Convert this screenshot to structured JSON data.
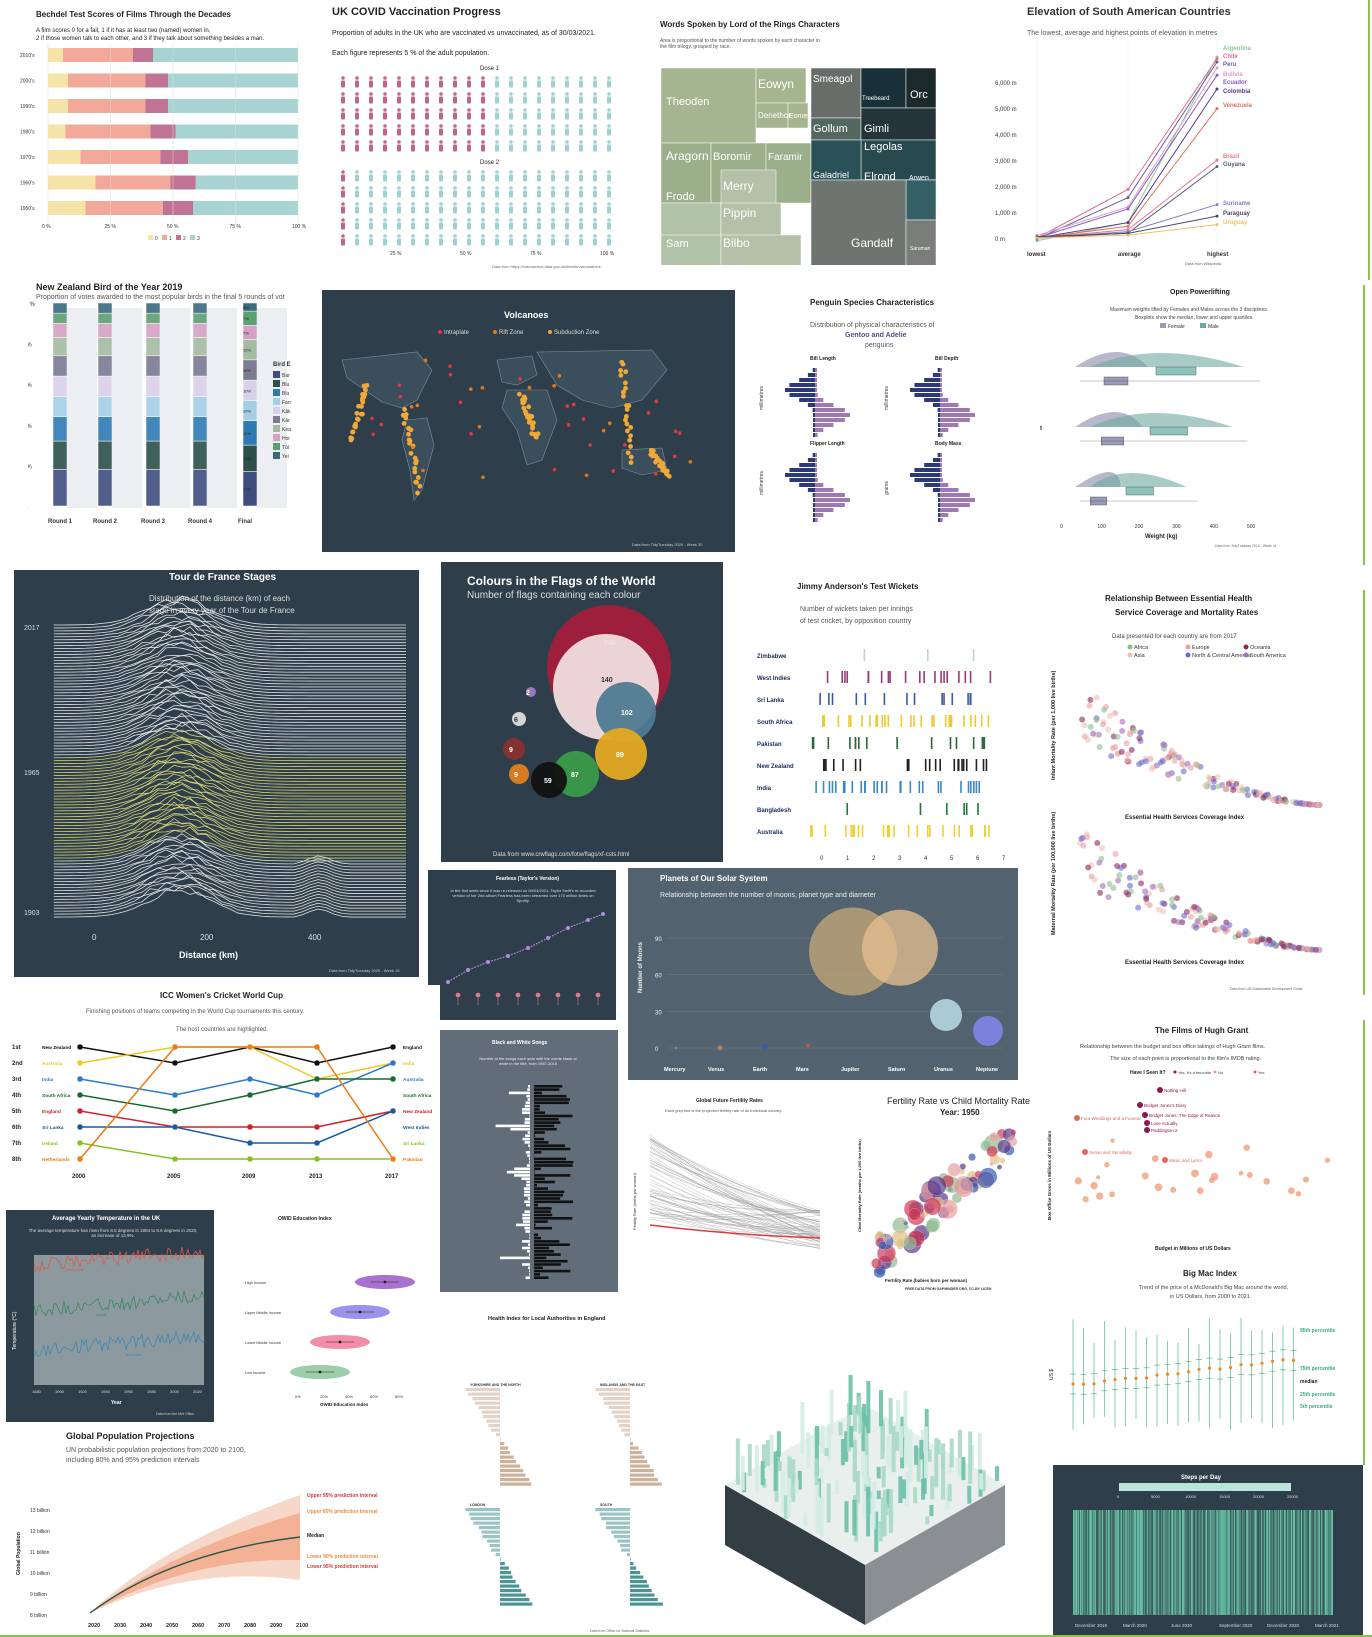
{
  "bechdel": {
    "title": "Bechdel Test Scores of Films Through the Decades",
    "subtitle_lines": [
      "A film scores 0 for a fail, 1 if it has at least two (named) women in,",
      "2 if those women talk to each other, and 3 if they talk about something besides a man."
    ],
    "legend_items": [
      "0",
      "1",
      "2",
      "3"
    ],
    "colors": [
      "#f6e3a7",
      "#f2a99a",
      "#c07393",
      "#a7d3d2"
    ],
    "chart_data": {
      "type": "bar",
      "categories": [
        "2010's",
        "2000's",
        "1990's",
        "1980's",
        "1970's",
        "1960's",
        "1950's"
      ],
      "series": [
        {
          "name": "0",
          "values": [
            6,
            8,
            8,
            7,
            13,
            19,
            15
          ]
        },
        {
          "name": "1",
          "values": [
            28,
            31,
            31,
            34,
            32,
            30,
            31
          ]
        },
        {
          "name": "2",
          "values": [
            8,
            9,
            9,
            10,
            11,
            10,
            12
          ]
        },
        {
          "name": "3",
          "values": [
            58,
            52,
            52,
            49,
            44,
            41,
            42
          ]
        }
      ],
      "xticks": [
        "0 %",
        "25 %",
        "50 %",
        "75 %",
        "100 %"
      ]
    }
  },
  "covid": {
    "title": "UK COVID Vaccination Progress",
    "subtitle": "Proportion of adults in the UK who are vaccinated vs unvaccinated, as of 30/03/2021.",
    "note": "Each figure represents 5 % of the adult population.",
    "dose1_label": "Dose 1",
    "dose2_label": "Dose 2",
    "xticks": [
      "25 %",
      "50 %",
      "75 %",
      "100 %"
    ],
    "source": "Data from https://coronavirus.data.gov.uk/details/vaccinations",
    "colors": {
      "vaccinated": "#c0668a",
      "unvaccinated": "#9fd0d3"
    },
    "chart_data": {
      "type": "bar",
      "categories": [
        "Dose 1",
        "Dose 2"
      ],
      "values": [
        55,
        5
      ]
    }
  },
  "lotr": {
    "title": "Words Spoken by Lord of the Rings Characters",
    "subtitle": "Area is proportional to the number of words spoken by each character in the film trilogy, grouped by race.",
    "chart_data": {
      "type": "table",
      "labels": [
        "Theoden",
        "Eowyn",
        "Denethor",
        "Eomer",
        "Aragorn",
        "Boromir",
        "Faramir",
        "Frodo",
        "Merry",
        "Pippin",
        "Sam",
        "Bilbo",
        "Smeagol",
        "Gollum",
        "Treebeard",
        "Orc",
        "Gimli",
        "Legolas",
        "Galadriel",
        "Elrond",
        "Arwen",
        "Gandalf",
        "Saruman"
      ]
    }
  },
  "elevation": {
    "title": "Elevation of South American Countries",
    "subtitle": "The lowest, average and highest points of elevation in metres",
    "source": "Data from Wikipedia",
    "chart_data": {
      "type": "line",
      "x": [
        "lowest",
        "average",
        "highest"
      ],
      "yticks": [
        "0 m",
        "1,000 m",
        "2,000 m",
        "3,000 m",
        "4,000 m",
        "5,000 m",
        "6,000 m"
      ],
      "ylim": [
        0,
        7000
      ],
      "series": [
        {
          "name": "Argentina",
          "values": [
            -105,
            595,
            6961
          ]
        },
        {
          "name": "Chile",
          "values": [
            0,
            1871,
            6893
          ]
        },
        {
          "name": "Peru",
          "values": [
            -37,
            1555,
            6768
          ]
        },
        {
          "name": "Bolivia",
          "values": [
            90,
            1192,
            6542
          ]
        },
        {
          "name": "Ecuador",
          "values": [
            0,
            1117,
            6263
          ]
        },
        {
          "name": "Colombia",
          "values": [
            0,
            593,
            5730
          ]
        },
        {
          "name": "Venezuela",
          "values": [
            0,
            450,
            4978
          ]
        },
        {
          "name": "Brazil",
          "values": [
            0,
            320,
            2995
          ]
        },
        {
          "name": "Guyana",
          "values": [
            0,
            190,
            2750
          ]
        },
        {
          "name": "Suriname",
          "values": [
            -2,
            246,
            1286
          ]
        },
        {
          "name": "Paraguay",
          "values": [
            46,
            178,
            842
          ]
        },
        {
          "name": "Uruguay",
          "values": [
            0,
            109,
            514
          ]
        }
      ]
    }
  },
  "nzbird": {
    "title": "New Zealand Bird of the Year 2019",
    "subtitle": "Proportion of votes awarded to the most popular birds in the final 5 rounds of vot",
    "legend_title": "Bird E",
    "chart_data": {
      "type": "bar",
      "categories": [
        "Round 1",
        "Round 2",
        "Round 3",
        "Round 4",
        "Final"
      ],
      "yticks": [
        "0 %",
        "20 %",
        "40 %",
        "60 %",
        "80 %",
        "100 %"
      ],
      "final_labels": [
        "17%",
        "13%",
        "12%",
        "10%",
        "10%",
        "10%",
        "10%",
        "7%",
        "7%",
        "8%"
      ],
      "legend": [
        "Bar",
        "Blu",
        "Blu",
        "Fan",
        "Kāk",
        "Kār",
        "Kea",
        "Hoi",
        "Tūī",
        "Yel"
      ]
    }
  },
  "volcano": {
    "title": "Volcanoes",
    "legend": [
      "Intraplate",
      "Rift Zone",
      "Subduction Zone"
    ],
    "source": "Data from TidyTuesday 2020 - Week 20"
  },
  "penguin": {
    "title": "Penguin Species Characteristics",
    "subtitle_lines": [
      "Distribution of physical characteristics of",
      "Gentoo and Adelie",
      "penguins"
    ],
    "panels": [
      "Bill Length",
      "Bill Depth",
      "Flipper Length",
      "Body Mass"
    ],
    "ylabels": [
      "millimetres",
      "millimetres",
      "millimetres",
      "grams"
    ]
  },
  "power": {
    "title": "Open Powerlifting",
    "subtitle_lines": [
      "Maximum weights lifted by Females and Males across the 3 disciplines.",
      "Boxplots show the median, lower and upper quartiles."
    ],
    "legend": [
      "Female",
      "Male"
    ],
    "categories": [
      "Squat",
      "Deadlift",
      "Bench"
    ],
    "xticks": [
      "0",
      "100",
      "200",
      "300",
      "400",
      "500"
    ],
    "xlabel": "Weight (kg)",
    "source": "Data from TidyTuesday 2019 - Week 41"
  },
  "tour": {
    "title": "Tour de France Stages",
    "subtitle_lines": [
      "Distribution of the distance (km) of each",
      "stage in every year of the Tour de France"
    ],
    "years": [
      "2017",
      "1965",
      "1903"
    ],
    "xticks": [
      "0",
      "200",
      "400"
    ],
    "xlabel": "Distance (km)",
    "source": "Data from TidyTuesday 2020 - Week 15"
  },
  "flags": {
    "title": "Colours in the Flags of the World",
    "subtitle": "Number of flags containing each colour",
    "source": "Data from www.crwflags.com/fotw/flags/xf-csts.html",
    "chart_data": {
      "type": "scatter",
      "labels": [
        "148",
        "140",
        "102",
        "89",
        "87",
        "59",
        "9",
        "9",
        "6",
        "2"
      ],
      "values": [
        148,
        140,
        102,
        89,
        87,
        59,
        9,
        9,
        6,
        2
      ]
    }
  },
  "anderson": {
    "title": "Jimmy Anderson's Test Wickets",
    "subtitle_lines": [
      "Number of wickets taken per innings",
      "of test cricket, by opposition country"
    ],
    "countries": [
      "Zimbabwe",
      "West Indies",
      "Sri Lanka",
      "South Africa",
      "Pakistan",
      "New Zealand",
      "India",
      "Bangladesh",
      "Australia"
    ],
    "xticks": [
      "0",
      "1",
      "2",
      "3",
      "4",
      "5",
      "6",
      "7"
    ],
    "xlabel": "Wickets Taken per Innings"
  },
  "health": {
    "title_lines": [
      "Relationship Between Essential Health",
      "Service Coverage and Mortality Rates"
    ],
    "subtitle": "Data presented for each country are from 2017",
    "legend": [
      "Africa",
      "Europe",
      "Oceania",
      "Asia",
      "North & Central America",
      "South America"
    ],
    "xlabel": "Essential Health Services Coverage Index",
    "ylabel1": "Infant Mortality Rate (per 1,000 live births)",
    "ylabel2": "Maternal Mortality Rate (per 100,000 live births)",
    "source": "Data from UN Sustainable Development Goals"
  },
  "fearless": {
    "title": "Fearless (Taylor's Version)",
    "text": "In the first week since it was re-released on 09/04/2021, Taylor Swift's re-recorded version of her 2nd album Fearless has been streamed over 170 million times on Spotify."
  },
  "planets": {
    "title": "Planets of Our Solar System",
    "subtitle": "Relationship between the number of moons, planet type and diameter",
    "ylabel": "Number of Moons",
    "yticks": [
      "0",
      "30",
      "60",
      "90"
    ],
    "names": [
      "Mercury",
      "Venus",
      "Earth",
      "Mars",
      "Jupiter",
      "Saturn",
      "Uranus",
      "Neptune"
    ],
    "chart_data": {
      "type": "scatter",
      "x": [
        "Mercury",
        "Venus",
        "Earth",
        "Mars",
        "Jupiter",
        "Saturn",
        "Uranus",
        "Neptune"
      ],
      "values": [
        0,
        0,
        1,
        2,
        79,
        82,
        27,
        14
      ]
    }
  },
  "cricket_wc": {
    "title": "ICC Women's Cricket World Cup",
    "subtitle_lines": [
      "Finishing positions of teams competing in the World Cup tournaments this century.",
      "The host countries are highlighted."
    ],
    "ranks": [
      "1st",
      "2nd",
      "3rd",
      "4th",
      "5th",
      "6th",
      "7th",
      "8th"
    ],
    "years": [
      "2000",
      "2005",
      "2009",
      "2013",
      "2017"
    ],
    "left": [
      "New Zealand",
      "Australia",
      "India",
      "South Africa",
      "England",
      "Sri Lanka",
      "Ireland",
      "Netherlands"
    ],
    "right": [
      "England",
      "India",
      "Australia",
      "South Africa",
      "New Zealand",
      "West Indies",
      "Sri Lanka",
      "Pakistan"
    ]
  },
  "bwsongs": {
    "title": "Black and White Songs",
    "subtitle": "Number of the songs each year with the words black or white in the title, from 1957-2015"
  },
  "fertility_future": {
    "title": "Global Future Fertility Rates",
    "subtitle": "Each grey line is the projected fertility rate of an individual country.",
    "ylabel": "Fertility Rate (births per woman)"
  },
  "gapminder": {
    "title": "Fertility Rate vs Child Mortality Rate",
    "year_label": "Year: 1950",
    "xlabel": "Fertility Rate (babies born per woman)",
    "ylabel": "Child Mortality Rate (deaths per 1,000 live births)",
    "source": "FREE DATA FROM GAPMINDER.ORG, CC-BY LICEN"
  },
  "hughgrant": {
    "title": "The Films of Hugh Grant",
    "subtitle_lines": [
      "Relationship between the budget and box office takings of Hugh Grant films.",
      "The size of each point is proportional to the film's IMDB rating."
    ],
    "legend_title": "Have I Seen It?",
    "legend": [
      "Yes, it's a favourite",
      "No",
      "Yes"
    ],
    "films": [
      "Notting Hill",
      "Bridget Jones's Diary",
      "Bridget Jones: The Edge of Reason",
      "Love Actually",
      "Paddington 2",
      "Four Weddings and a Funeral",
      "Sense and Sensibility",
      "Music and Lyrics"
    ],
    "xlabel": "Budget in Millions of US Dollars",
    "ylabel": "Box Office Gross in Millions of US Dollars"
  },
  "uktemp": {
    "title": "Average Yearly Temperature in the UK",
    "subtitle": "The average temperature has risen from 8.5 degrees in 1884 to 9.6 degrees in 2020, an increase of 12.9%.",
    "ylabel": "Temperature (°C)",
    "xlabel": "Year",
    "labels": [
      "maximum",
      "mean",
      "minimum"
    ],
    "xticks": [
      "1880",
      "1900",
      "1920",
      "1940",
      "1960",
      "1980",
      "2000",
      "2020"
    ],
    "source": "Data from the Met Office"
  },
  "owid": {
    "title": "OWID Education Index",
    "categories": [
      "High Income",
      "Upper Middle Income",
      "Lower Middle Income",
      "Low Income"
    ],
    "xlabel": "OWID Education Index",
    "xticks": [
      "0%",
      "20%",
      "40%",
      "60%",
      "80%"
    ]
  },
  "health_index": {
    "title": "Health Index for Local Authorities in England",
    "regions": [
      "YORKSHIRE AND THE NORTH",
      "MIDLANDS AND THE EAST",
      "LONDON",
      "SOUTH"
    ],
    "source": "Data from Office for National Statistics"
  },
  "bigmac": {
    "title": "Big Mac Index",
    "subtitle_lines": [
      "Trend of the price of a McDonald's Big Mac around the world,",
      "in US Dollars, from 2000 to 2021"
    ],
    "ylabel": "US $",
    "percentiles": [
      "95th percentile",
      "75th percentile",
      "median",
      "25th percentile",
      "5th percentile"
    ]
  },
  "population": {
    "title": "Global Population Projections",
    "subtitle_lines": [
      "UN probabilistic population projections from 2020 to 2100,",
      "including 80% and 95% prediction intervals"
    ],
    "ylabel": "Global Population",
    "yticks": [
      "8 billion",
      "9 billion",
      "10 billion",
      "11 billion",
      "12 billion",
      "13 billion"
    ],
    "xticks": [
      "2020",
      "2030",
      "2040",
      "2050",
      "2060",
      "2070",
      "2080",
      "2090",
      "2100"
    ],
    "labels": [
      "Upper 95% prediction interval",
      "Upper 80% prediction interval",
      "Median",
      "Lower 80% prediction interval",
      "Lower 95% prediction interval"
    ]
  },
  "steps": {
    "title": "Steps per Day",
    "legend_ticks": [
      "0",
      "5000",
      "10000",
      "15000",
      "20000",
      "25000"
    ],
    "xticks": [
      "December 2019",
      "March 2020",
      "June 2020",
      "September 2020",
      "December 2020",
      "March 2021"
    ]
  }
}
